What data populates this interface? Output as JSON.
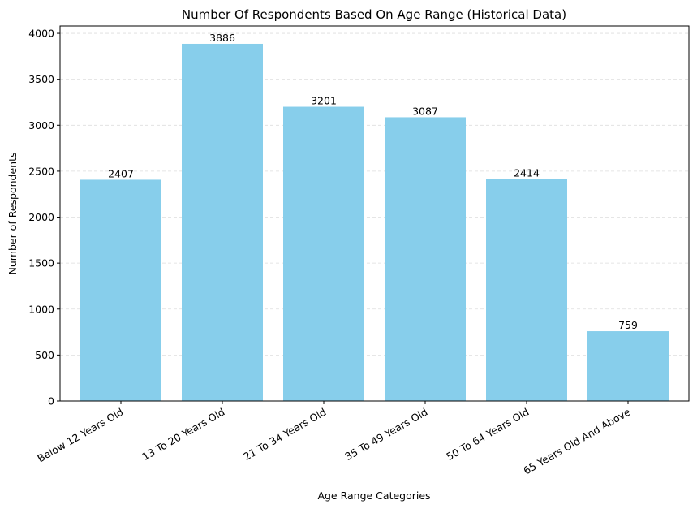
{
  "chart_data": {
    "type": "bar",
    "title": "Number Of Respondents Based On Age Range (Historical Data)",
    "xlabel": "Age Range Categories",
    "ylabel": "Number of Respondents",
    "categories": [
      "Below 12 Years Old",
      "13 To 20 Years Old",
      "21 To 34 Years Old",
      "35 To 49 Years Old",
      "50 To 64 Years Old",
      "65 Years Old And Above"
    ],
    "values": [
      2407,
      3886,
      3201,
      3087,
      2414,
      759
    ],
    "ylim": [
      0,
      4080
    ],
    "yticks": [
      0,
      500,
      1000,
      1500,
      2000,
      2500,
      3000,
      3500,
      4000
    ],
    "grid": "horizontal dashed",
    "bar_color": "#87CEEB",
    "grid_color": "#dddddd"
  }
}
